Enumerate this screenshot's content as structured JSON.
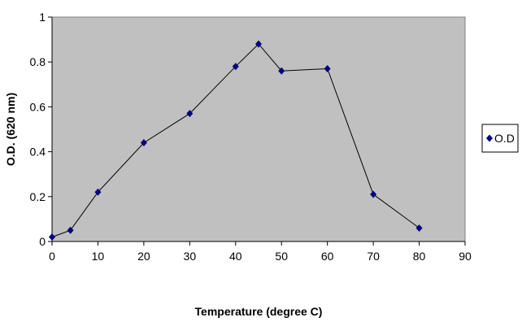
{
  "chart_data": {
    "type": "line",
    "title": "",
    "xlabel": "Temperature (degree C)",
    "ylabel": "O.D. (620 nm)",
    "xlim": [
      0,
      90
    ],
    "ylim": [
      0,
      1
    ],
    "x_ticks": [
      0,
      10,
      20,
      30,
      40,
      50,
      60,
      70,
      80,
      90
    ],
    "y_ticks": [
      0,
      0.2,
      0.4,
      0.6,
      0.8,
      1
    ],
    "grid": false,
    "legend_position": "right",
    "plot_background": "#c0c0c0",
    "series": [
      {
        "name": "O.D",
        "color": "#000080",
        "line_color": "#000000",
        "marker": "diamond",
        "x": [
          0,
          4,
          10,
          20,
          30,
          40,
          45,
          50,
          60,
          70,
          80
        ],
        "y": [
          0.02,
          0.05,
          0.22,
          0.44,
          0.57,
          0.78,
          0.88,
          0.76,
          0.77,
          0.21,
          0.06
        ]
      }
    ]
  }
}
